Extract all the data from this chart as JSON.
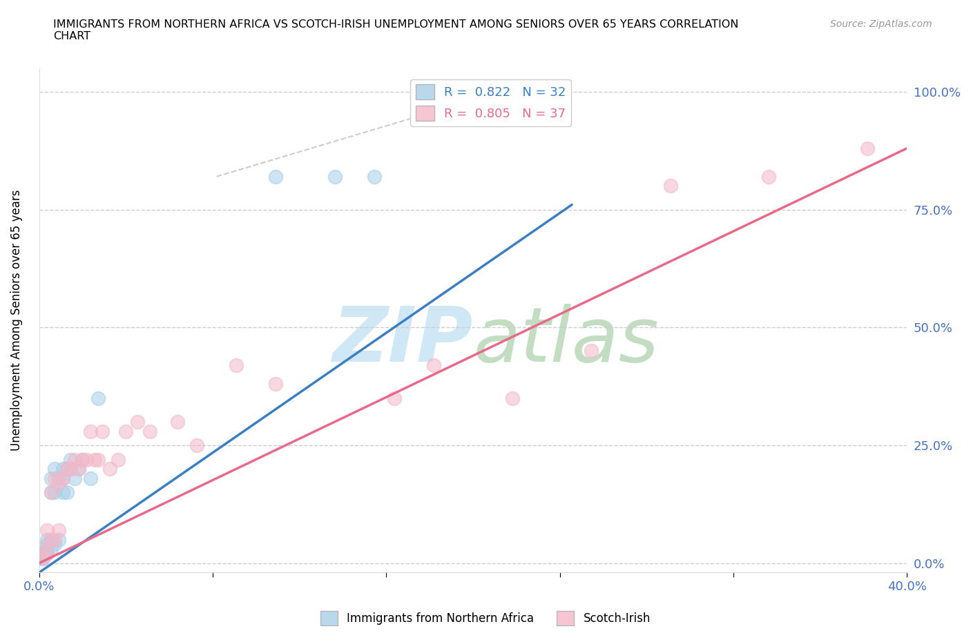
{
  "title": "IMMIGRANTS FROM NORTHERN AFRICA VS SCOTCH-IRISH UNEMPLOYMENT AMONG SENIORS OVER 65 YEARS CORRELATION\nCHART",
  "source": "Source: ZipAtlas.com",
  "ylabel": "Unemployment Among Seniors over 65 years",
  "legend_blue_R": "0.822",
  "legend_blue_N": "32",
  "legend_pink_R": "0.805",
  "legend_pink_N": "37",
  "ytick_labels": [
    "0.0%",
    "25.0%",
    "50.0%",
    "75.0%",
    "100.0%"
  ],
  "ytick_values": [
    0,
    0.25,
    0.5,
    0.75,
    1.0
  ],
  "xlim": [
    0,
    0.22
  ],
  "ylim": [
    -0.02,
    1.05
  ],
  "blue_color": "#a8cfe8",
  "pink_color": "#f4b8c8",
  "blue_line_color": "#3a7fc1",
  "pink_line_color": "#e8698a",
  "diag_line_color": "#cccccc",
  "blue_scatter_x": [
    0.0005,
    0.001,
    0.001,
    0.0015,
    0.002,
    0.002,
    0.002,
    0.002,
    0.003,
    0.003,
    0.003,
    0.003,
    0.004,
    0.004,
    0.004,
    0.005,
    0.005,
    0.006,
    0.006,
    0.006,
    0.007,
    0.007,
    0.008,
    0.008,
    0.009,
    0.01,
    0.011,
    0.013,
    0.015,
    0.06,
    0.075,
    0.085
  ],
  "blue_scatter_y": [
    0.01,
    0.01,
    0.02,
    0.02,
    0.02,
    0.03,
    0.04,
    0.05,
    0.03,
    0.05,
    0.15,
    0.18,
    0.04,
    0.15,
    0.2,
    0.05,
    0.18,
    0.15,
    0.18,
    0.2,
    0.15,
    0.2,
    0.2,
    0.22,
    0.18,
    0.2,
    0.22,
    0.18,
    0.35,
    0.82,
    0.82,
    0.82
  ],
  "pink_scatter_x": [
    0.001,
    0.001,
    0.002,
    0.002,
    0.003,
    0.003,
    0.004,
    0.004,
    0.005,
    0.005,
    0.006,
    0.007,
    0.008,
    0.009,
    0.01,
    0.011,
    0.012,
    0.013,
    0.014,
    0.015,
    0.016,
    0.018,
    0.02,
    0.022,
    0.025,
    0.028,
    0.035,
    0.04,
    0.05,
    0.06,
    0.09,
    0.1,
    0.12,
    0.14,
    0.16,
    0.185,
    0.21
  ],
  "pink_scatter_y": [
    0.01,
    0.03,
    0.02,
    0.07,
    0.05,
    0.15,
    0.05,
    0.18,
    0.07,
    0.17,
    0.18,
    0.2,
    0.2,
    0.22,
    0.2,
    0.22,
    0.22,
    0.28,
    0.22,
    0.22,
    0.28,
    0.2,
    0.22,
    0.28,
    0.3,
    0.28,
    0.3,
    0.25,
    0.42,
    0.38,
    0.35,
    0.42,
    0.35,
    0.45,
    0.8,
    0.82,
    0.88
  ],
  "blue_line_x": [
    0.0,
    0.135
  ],
  "blue_line_y": [
    -0.02,
    0.76
  ],
  "pink_line_x": [
    0.0,
    0.22
  ],
  "pink_line_y": [
    0.0,
    0.88
  ],
  "diag_line_x": [
    0.045,
    0.125
  ],
  "diag_line_y": [
    0.82,
    1.02
  ]
}
